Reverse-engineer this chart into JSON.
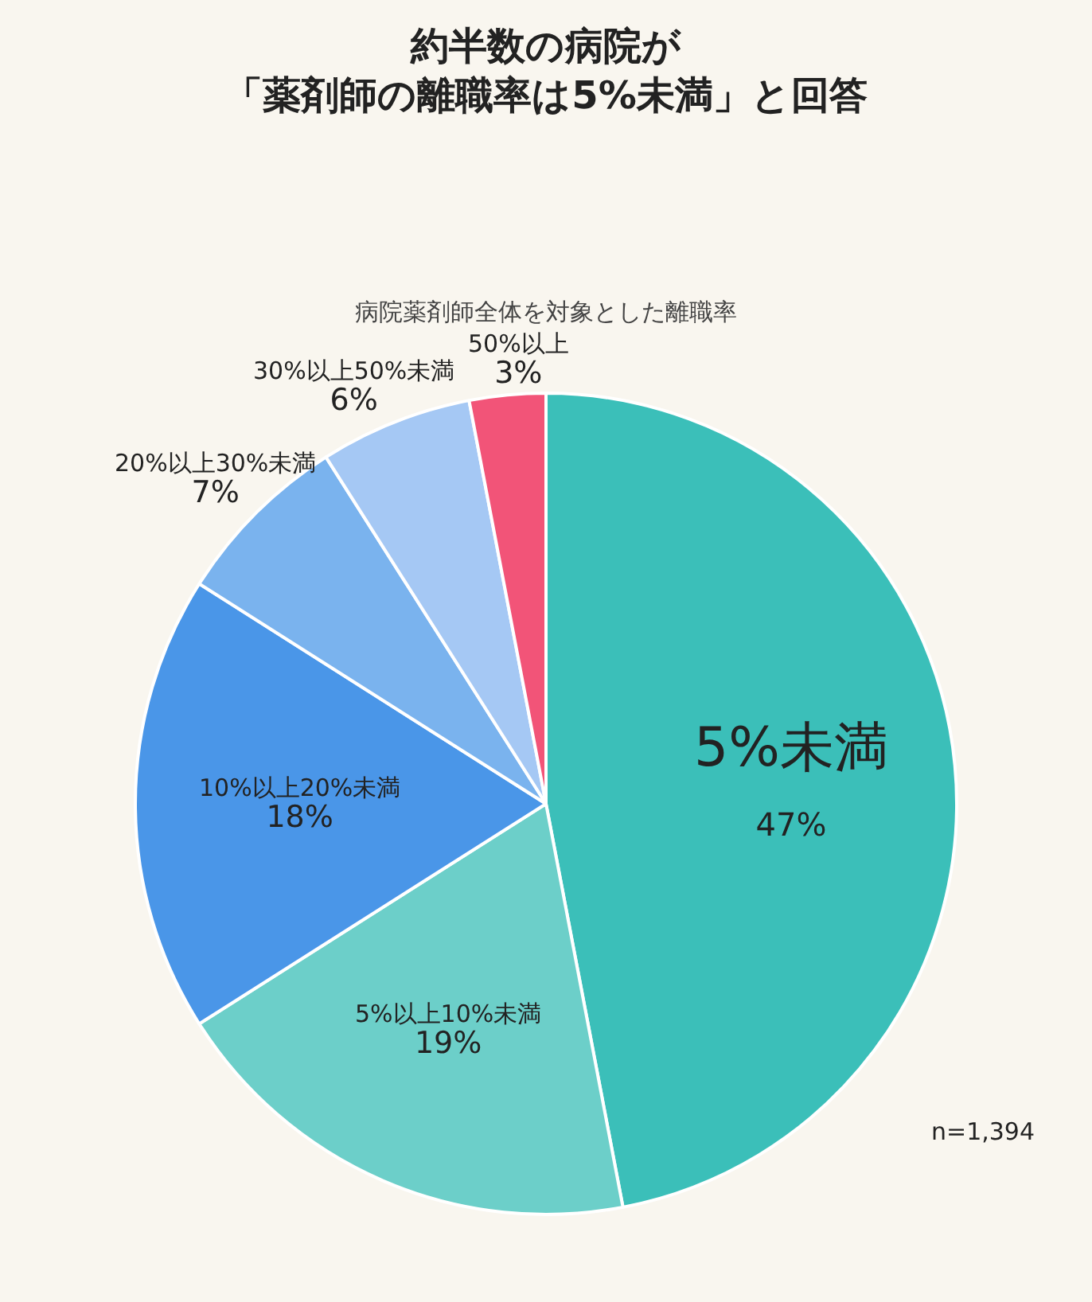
{
  "chart_data": {
    "type": "pie",
    "title": "約半数の病院が「薬剤師の離職率は5%未満」と回答",
    "subtitle": "病院薬剤師全体を対象とした離職率",
    "categories": [
      "5%未満",
      "5%以上10%未満",
      "10%以上20%未満",
      "20%以上30%未満",
      "30%以上50%未満",
      "50%以上"
    ],
    "values": [
      47,
      19,
      18,
      7,
      6,
      3
    ],
    "value_labels": [
      "47%",
      "19%",
      "18%",
      "7%",
      "6%",
      "3%"
    ],
    "colors": [
      "#3bbfb9",
      "#6ccfc9",
      "#4a96e8",
      "#7ab3ee",
      "#a5c8f4",
      "#f25478"
    ],
    "annotations": [
      "n=1,394"
    ],
    "legend": false
  }
}
